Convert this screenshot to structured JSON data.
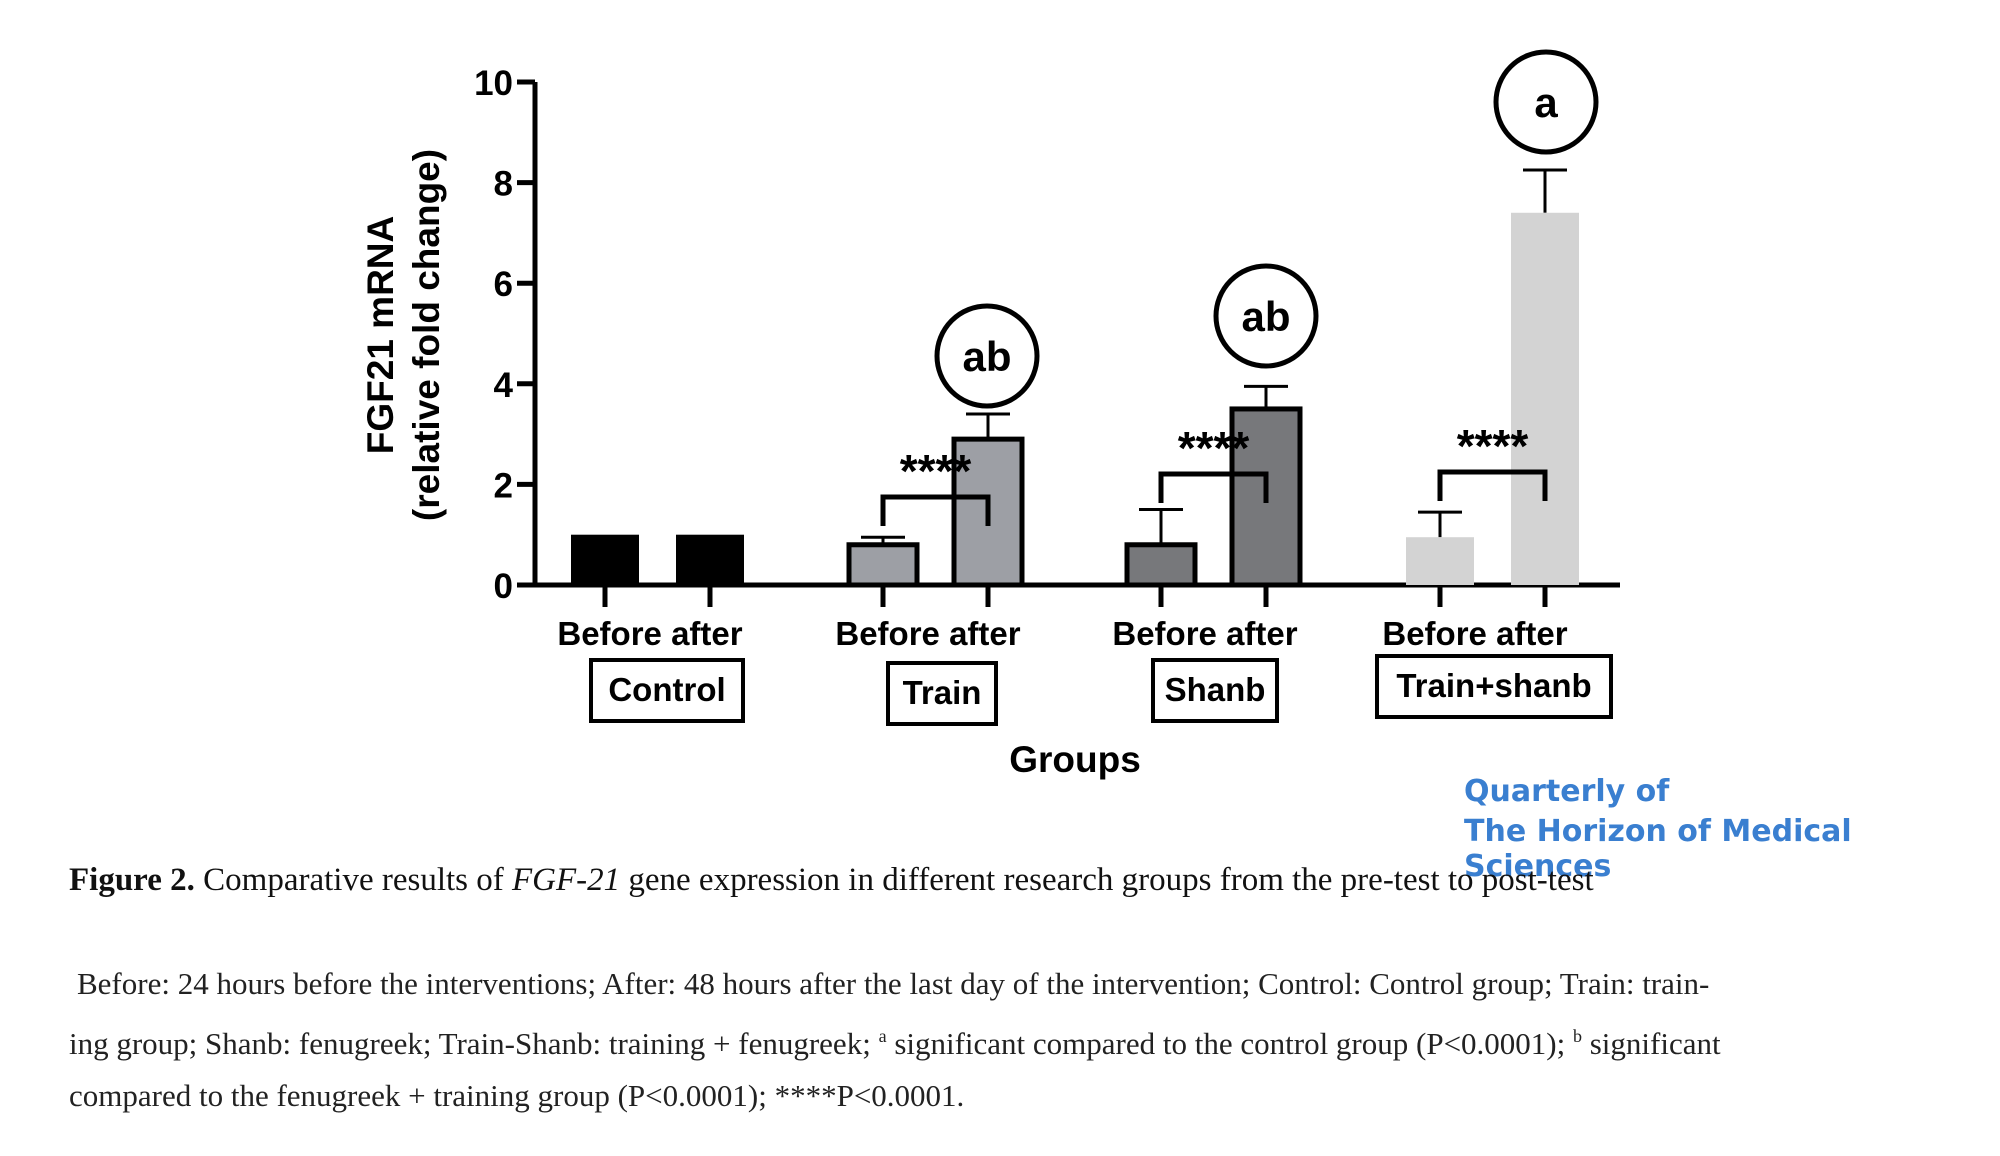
{
  "chart_data": {
    "type": "bar",
    "ylabel_line1": "FGF21 mRNA",
    "ylabel_line2": "(relative fold change)",
    "xlabel": "Groups",
    "ylim": [
      0,
      10
    ],
    "yticks": [
      "0",
      "2",
      "4",
      "6",
      "8",
      "10"
    ],
    "groups": [
      {
        "name": "Control",
        "color": "#000000",
        "bars": [
          {
            "label": "Before",
            "value": 1.0,
            "error": null
          },
          {
            "label": "after",
            "value": 1.0,
            "error": null
          }
        ],
        "significance": "",
        "letter": ""
      },
      {
        "name": "Train",
        "color": "#9d9fa5",
        "bars": [
          {
            "label": "Before",
            "value": 0.8,
            "error": 0.15
          },
          {
            "label": "after",
            "value": 2.9,
            "error": 0.5
          }
        ],
        "significance": "****",
        "letter": "ab"
      },
      {
        "name": "Shanb",
        "color": "#77787b",
        "bars": [
          {
            "label": "Before",
            "value": 0.8,
            "error": 0.7
          },
          {
            "label": "after",
            "value": 3.5,
            "error": 0.45
          }
        ],
        "significance": "****",
        "letter": "ab"
      },
      {
        "name": "Train+shanb",
        "color": "#d3d3d3",
        "bars": [
          {
            "label": "Before",
            "value": 0.95,
            "error": 0.5
          },
          {
            "label": "after",
            "value": 7.4,
            "error": 0.85
          }
        ],
        "significance": "****",
        "letter": "a"
      }
    ]
  },
  "journal": {
    "line1": "Quarterly of",
    "line2": "The Horizon of Medical Sciences"
  },
  "caption": {
    "label": "Figure 2.",
    "text_pre": " Comparative results of ",
    "gene": "FGF-21",
    "text_post": " gene expression in different research groups from the pre-test to post-test"
  },
  "notes": {
    "line1": "Before: 24 hours before the interventions; After: 48 hours after the last day of the intervention; Control: Control group; Train: train-",
    "line2_a": "ing group; Shanb: fenugreek; Train-Shanb: training + fenugreek; ",
    "sup_a": "a",
    "line2_b": " significant compared to the control group (P<0.0001); ",
    "sup_b": "b",
    "line2_c": " significant",
    "line3": "compared to the fenugreek + training group (P<0.0001); ****P<0.0001."
  }
}
